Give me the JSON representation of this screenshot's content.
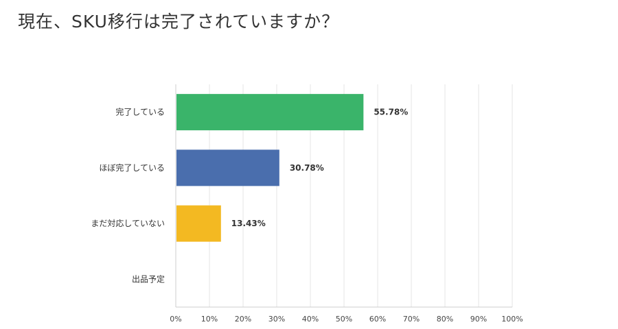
{
  "title": "現在、SKU移行は完了されていますか？",
  "chart_data": {
    "type": "bar",
    "orientation": "horizontal",
    "categories": [
      "完了している",
      "ほぼ完了している",
      "まだ対応していない",
      "出品予定"
    ],
    "values": [
      55.78,
      30.78,
      13.43,
      0
    ],
    "value_labels": [
      "55.78%",
      "30.78%",
      "13.43%",
      ""
    ],
    "colors": [
      "#3ab46a",
      "#4a6ead",
      "#f3b922",
      "#cccccc"
    ],
    "xlim": [
      0,
      100
    ],
    "ticks": [
      0,
      10,
      20,
      30,
      40,
      50,
      60,
      70,
      80,
      90,
      100
    ],
    "tick_labels": [
      "0%",
      "10%",
      "20%",
      "30%",
      "40%",
      "50%",
      "60%",
      "70%",
      "80%",
      "90%",
      "100%"
    ],
    "grid": true,
    "xlabel": "",
    "ylabel": ""
  }
}
